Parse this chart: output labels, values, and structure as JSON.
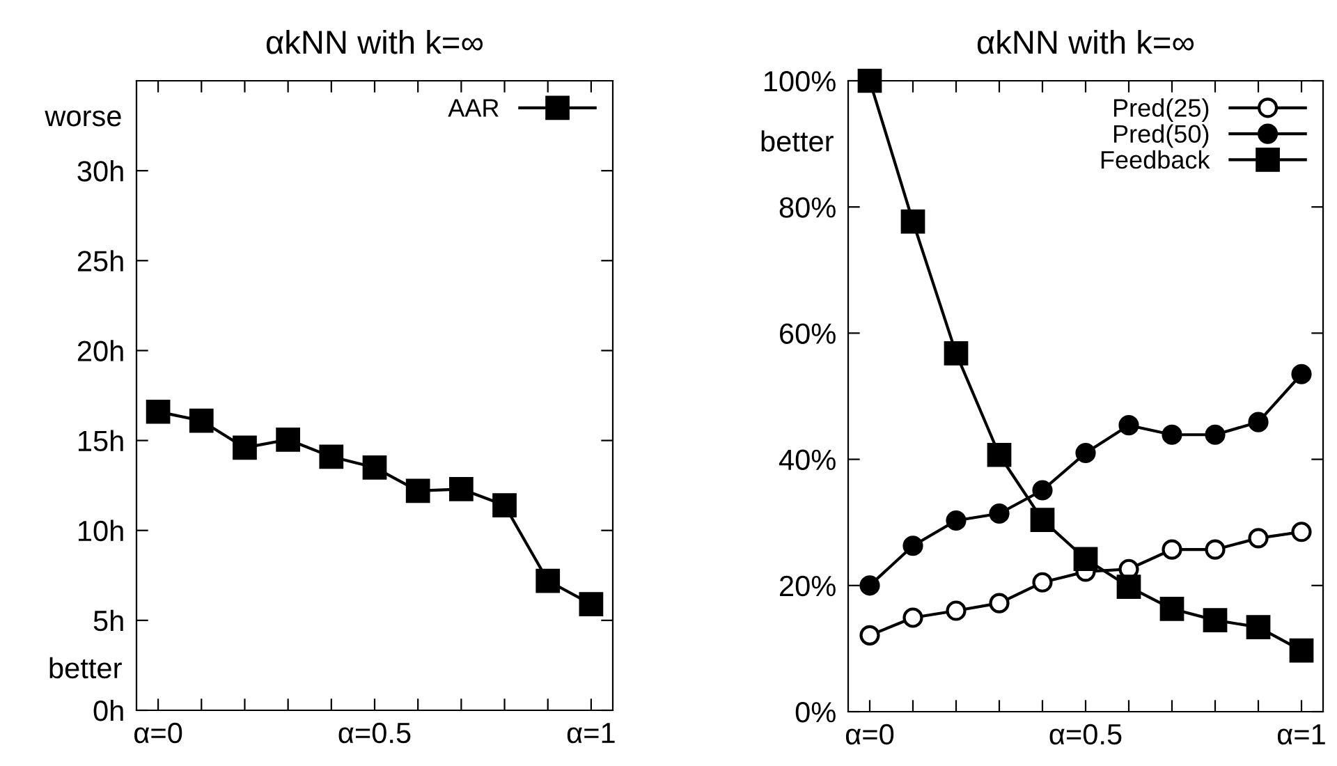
{
  "chart_data": [
    {
      "type": "line",
      "title": "αkNN with k=∞",
      "x": [
        0,
        0.1,
        0.2,
        0.3,
        0.4,
        0.5,
        0.6,
        0.7,
        0.8,
        0.9,
        1
      ],
      "xlim": [
        -0.05,
        1.05
      ],
      "xticks": [
        {
          "value": 0,
          "label": "α=0"
        },
        {
          "value": 0.1,
          "label": null
        },
        {
          "value": 0.2,
          "label": null
        },
        {
          "value": 0.3,
          "label": null
        },
        {
          "value": 0.4,
          "label": null
        },
        {
          "value": 0.5,
          "label": "α=0.5"
        },
        {
          "value": 0.6,
          "label": null
        },
        {
          "value": 0.7,
          "label": null
        },
        {
          "value": 0.8,
          "label": null
        },
        {
          "value": 0.9,
          "label": null
        },
        {
          "value": 1,
          "label": "α=1"
        }
      ],
      "ylim": [
        0,
        35
      ],
      "yticks": [
        {
          "value": 0,
          "label": "0h"
        },
        {
          "value": 5,
          "label": "5h"
        },
        {
          "value": 10,
          "label": "10h"
        },
        {
          "value": 15,
          "label": "15h"
        },
        {
          "value": 20,
          "label": "20h"
        },
        {
          "value": 25,
          "label": "25h"
        },
        {
          "value": 30,
          "label": "30h"
        }
      ],
      "annotations": [
        "worse",
        "better"
      ],
      "legend": "top right",
      "grid": false,
      "series": [
        {
          "name": "AAR",
          "color": "#000000",
          "marker": "square",
          "values": [
            16.6,
            16.1,
            14.6,
            15.05,
            14.1,
            13.5,
            12.2,
            12.3,
            11.4,
            7.2,
            5.9
          ]
        }
      ]
    },
    {
      "type": "line",
      "title": "αkNN with k=∞",
      "x": [
        0,
        0.1,
        0.2,
        0.3,
        0.4,
        0.5,
        0.6,
        0.7,
        0.8,
        0.9,
        1
      ],
      "xlim": [
        -0.05,
        1.05
      ],
      "xticks": [
        {
          "value": 0,
          "label": "α=0"
        },
        {
          "value": 0.1,
          "label": null
        },
        {
          "value": 0.2,
          "label": null
        },
        {
          "value": 0.3,
          "label": null
        },
        {
          "value": 0.4,
          "label": null
        },
        {
          "value": 0.5,
          "label": "α=0.5"
        },
        {
          "value": 0.6,
          "label": null
        },
        {
          "value": 0.7,
          "label": null
        },
        {
          "value": 0.8,
          "label": null
        },
        {
          "value": 0.9,
          "label": null
        },
        {
          "value": 1,
          "label": "α=1"
        }
      ],
      "ylim": [
        0,
        100
      ],
      "yticks": [
        {
          "value": 0,
          "label": "0%"
        },
        {
          "value": 20,
          "label": "20%"
        },
        {
          "value": 40,
          "label": "40%"
        },
        {
          "value": 60,
          "label": "60%"
        },
        {
          "value": 80,
          "label": "80%"
        },
        {
          "value": 100,
          "label": "100%"
        }
      ],
      "annotations": [
        "better"
      ],
      "legend": "top right",
      "grid": false,
      "series": [
        {
          "name": "Pred(25)",
          "color": "#ffffff",
          "marker": "circle",
          "values": [
            12.1,
            14.9,
            16.0,
            17.2,
            20.5,
            22.2,
            22.6,
            25.7,
            25.7,
            27.5,
            28.5
          ]
        },
        {
          "name": "Pred(50)",
          "color": "#000000",
          "marker": "circle",
          "values": [
            20.0,
            26.3,
            30.3,
            31.4,
            35.1,
            41.0,
            45.4,
            43.9,
            43.9,
            45.9,
            53.5
          ]
        },
        {
          "name": "Feedback",
          "color": "#000000",
          "marker": "square",
          "values": [
            100,
            77.7,
            56.8,
            40.7,
            30.4,
            24.2,
            19.8,
            16.3,
            14.5,
            13.4,
            9.7
          ]
        }
      ]
    }
  ]
}
